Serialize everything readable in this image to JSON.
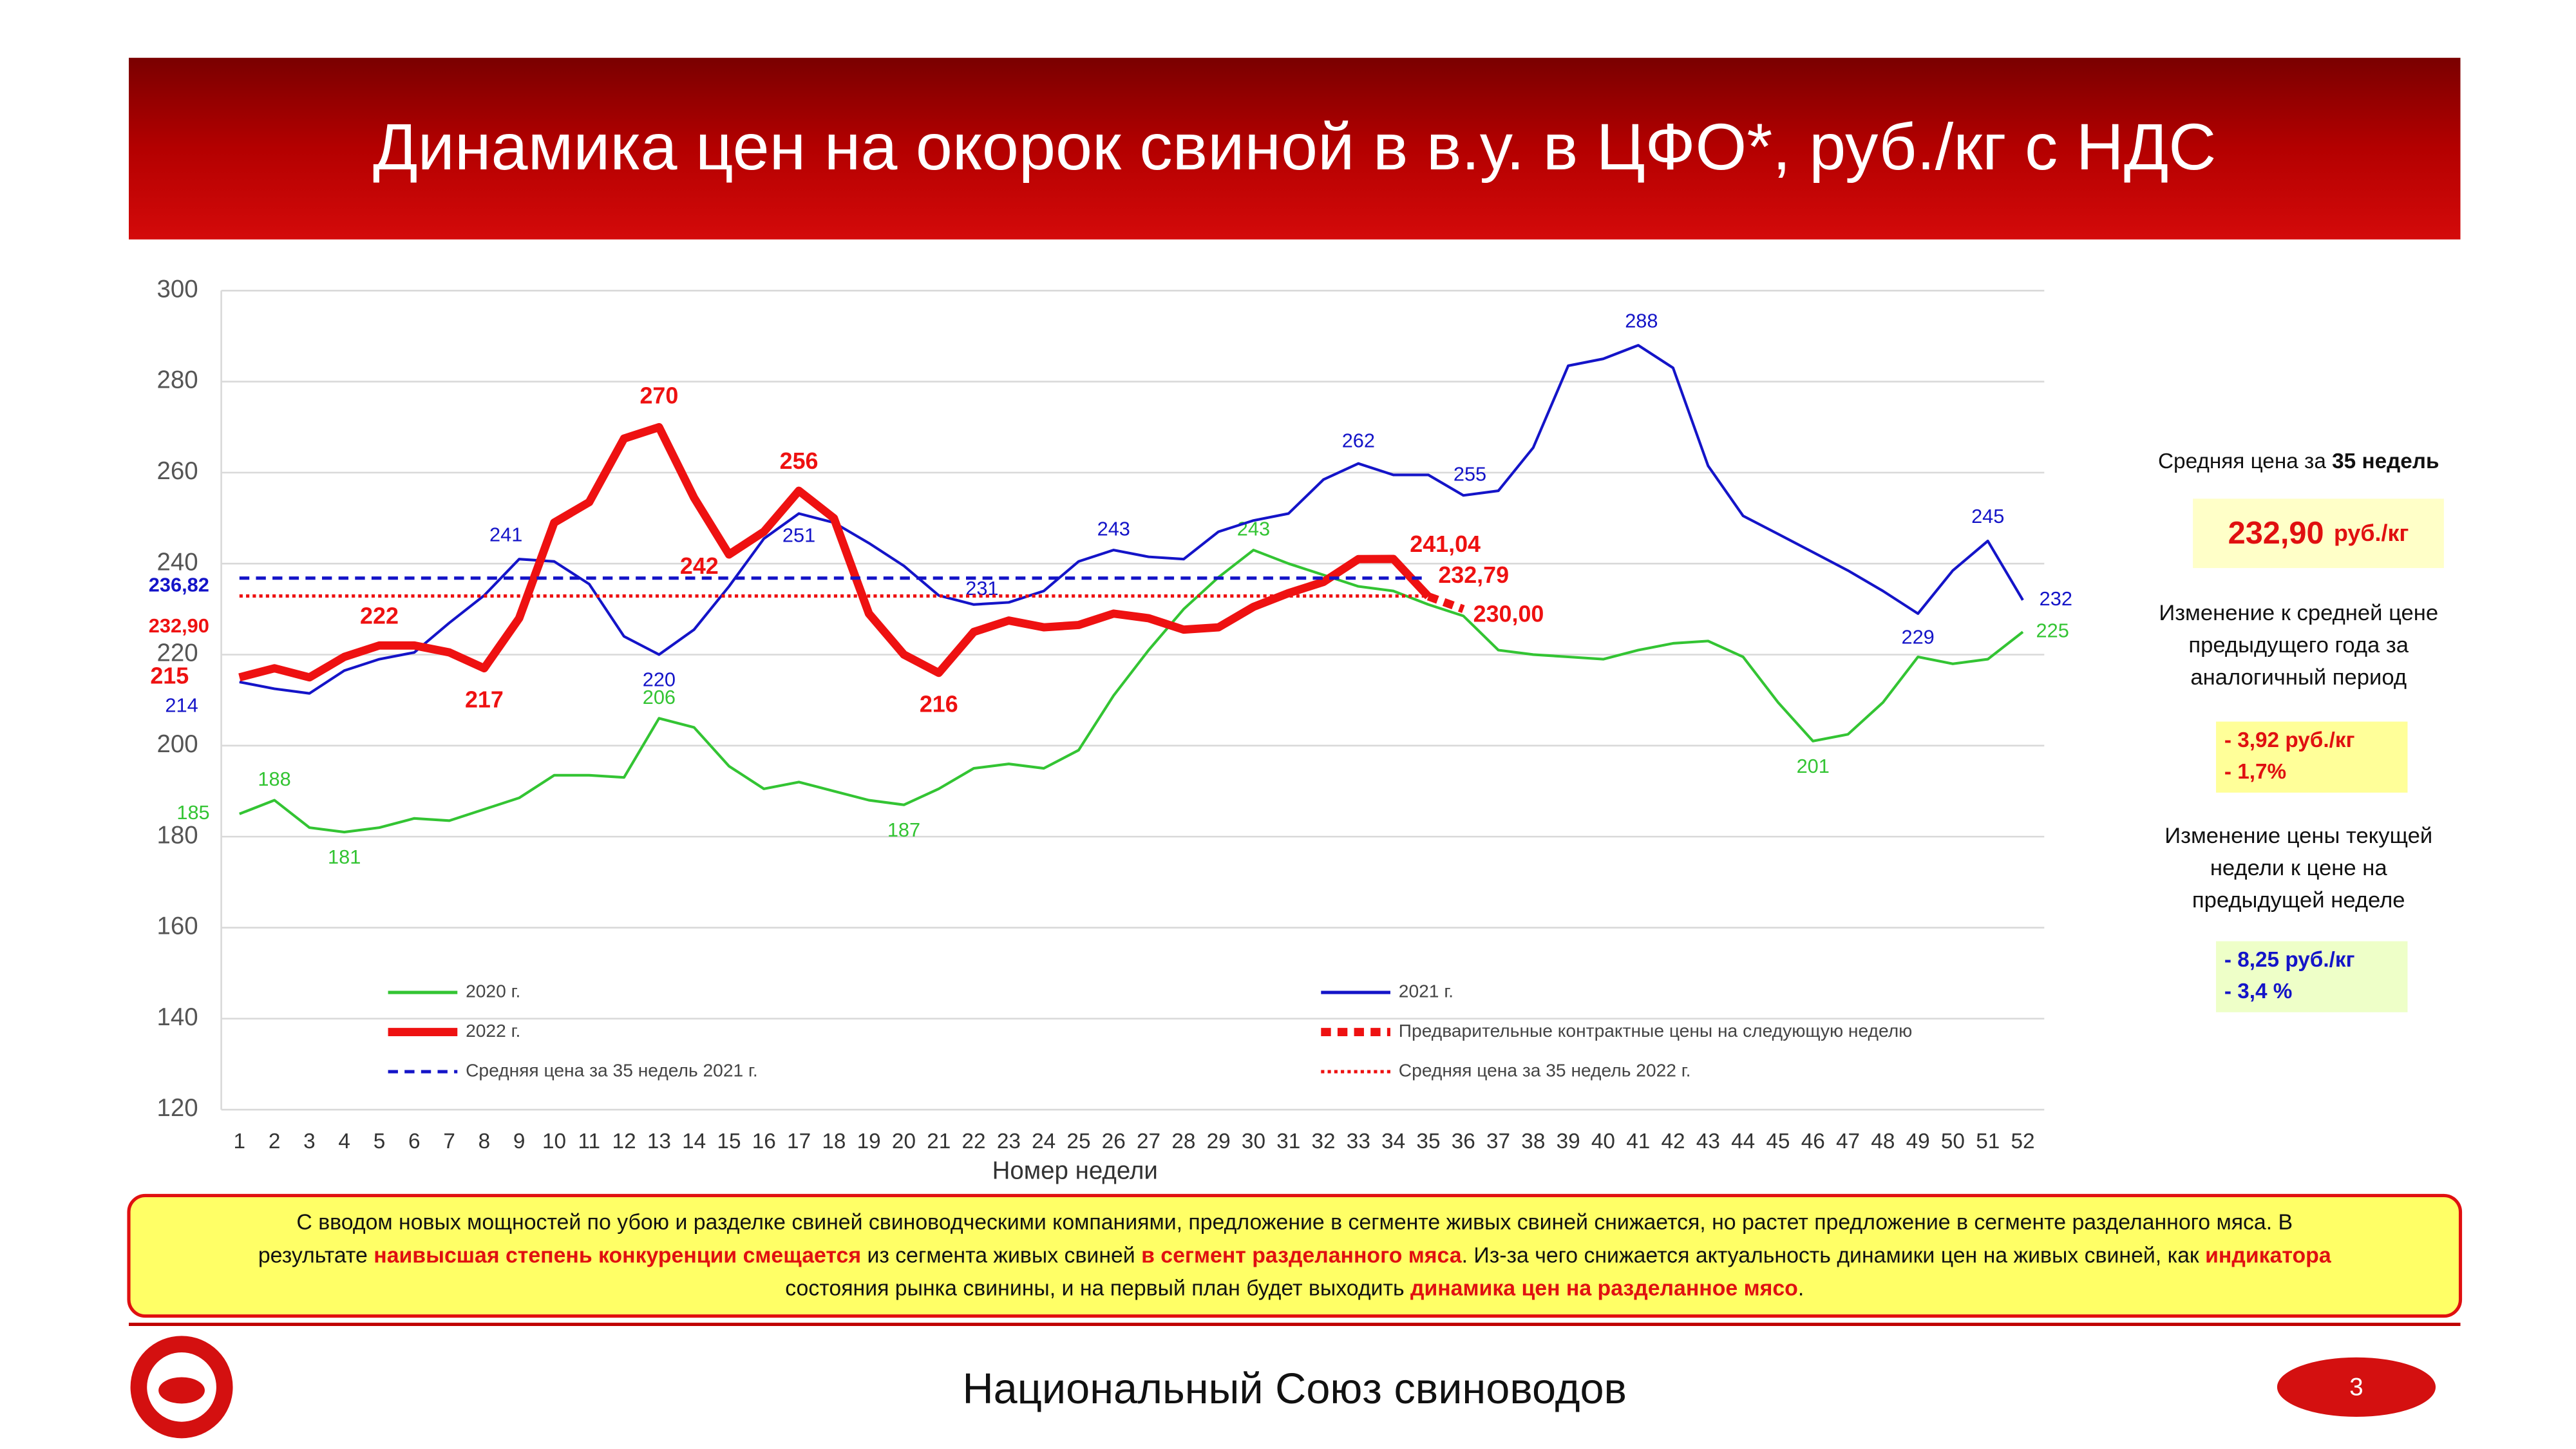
{
  "header": {
    "title": "Динамика цен на окорок свиной в в.у. в ЦФО*, руб./кг с НДС"
  },
  "chart_data": {
    "type": "line",
    "x_label": "Номер недели",
    "categories": [
      1,
      2,
      3,
      4,
      5,
      6,
      7,
      8,
      9,
      10,
      11,
      12,
      13,
      14,
      15,
      16,
      17,
      18,
      19,
      20,
      21,
      22,
      23,
      24,
      25,
      26,
      27,
      28,
      29,
      30,
      31,
      32,
      33,
      34,
      35,
      36,
      37,
      38,
      39,
      40,
      41,
      42,
      43,
      44,
      45,
      46,
      47,
      48,
      49,
      50,
      51,
      52
    ],
    "ylim": [
      120,
      300
    ],
    "yticks": [
      120,
      140,
      160,
      180,
      200,
      220,
      240,
      260,
      280,
      300
    ],
    "grid": true,
    "legend": "inside-bottom",
    "series": [
      {
        "name": "2020 г.",
        "color": "#33c433",
        "line_style": "solid",
        "thick": false,
        "values": [
          185,
          188,
          182,
          181,
          182,
          184,
          183.5,
          186,
          188.5,
          193.5,
          193.5,
          193,
          206,
          204,
          195.5,
          190.5,
          192,
          190,
          188,
          187,
          190.5,
          195,
          196,
          195,
          199,
          211,
          221,
          230,
          237,
          243,
          240,
          237.5,
          235,
          234,
          231,
          228.5,
          221,
          220,
          219.5,
          219,
          221,
          222.5,
          223,
          219.5,
          209.5,
          201,
          202.5,
          209.5,
          219.5,
          218,
          219,
          225
        ],
        "value_labels": [
          "185",
          "188",
          null,
          "181",
          null,
          null,
          null,
          null,
          null,
          null,
          null,
          null,
          "206",
          null,
          null,
          null,
          null,
          null,
          null,
          "187",
          null,
          null,
          null,
          null,
          null,
          null,
          null,
          null,
          null,
          "243",
          null,
          null,
          null,
          null,
          null,
          null,
          null,
          null,
          null,
          null,
          null,
          null,
          null,
          null,
          null,
          "201",
          null,
          null,
          null,
          null,
          null,
          "225"
        ]
      },
      {
        "name": "2021 г.",
        "color": "#1414c8",
        "line_style": "solid",
        "thick": false,
        "values": [
          214,
          212.5,
          211.5,
          216.5,
          219,
          220.5,
          227,
          233,
          241,
          240.5,
          235.5,
          224,
          220,
          225.5,
          235,
          245.5,
          251,
          249,
          244.5,
          239.5,
          233,
          231,
          231.5,
          234,
          240.5,
          243,
          241.5,
          241,
          247,
          249.5,
          251,
          258.5,
          262,
          259.5,
          259.5,
          255,
          256,
          265.5,
          283.5,
          285,
          288,
          283,
          261.5,
          250.5,
          246.5,
          242.5,
          238.5,
          234,
          229,
          238.5,
          245,
          232
        ],
        "value_labels": [
          "214",
          null,
          null,
          null,
          null,
          null,
          null,
          null,
          "241",
          null,
          null,
          null,
          "220",
          null,
          null,
          null,
          "251",
          null,
          null,
          null,
          null,
          "231",
          null,
          null,
          null,
          "243",
          null,
          null,
          null,
          null,
          null,
          null,
          "262",
          null,
          null,
          "255",
          null,
          null,
          null,
          null,
          "288",
          null,
          null,
          null,
          null,
          null,
          null,
          null,
          "229",
          null,
          "245",
          "232"
        ]
      },
      {
        "name": "2022 г.",
        "color": "#ee1111",
        "line_style": "solid",
        "thick": true,
        "values": [
          215,
          217,
          215,
          219.5,
          222,
          222,
          220.5,
          217,
          228,
          249,
          253.5,
          267.5,
          270,
          254.5,
          242,
          247,
          256,
          250,
          229,
          220,
          216,
          225,
          227.5,
          226,
          226.5,
          229,
          228,
          225.5,
          226,
          230.5,
          233.5,
          236,
          241,
          241.04,
          232.79,
          null,
          null,
          null,
          null,
          null,
          null,
          null,
          null,
          null,
          null,
          null,
          null,
          null,
          null,
          null,
          null,
          null
        ],
        "value_labels": [
          "215",
          null,
          null,
          null,
          "222",
          null,
          null,
          "217",
          null,
          null,
          null,
          null,
          "270",
          null,
          "242",
          null,
          "256",
          null,
          null,
          null,
          "216",
          null,
          null,
          null,
          null,
          null,
          null,
          null,
          null,
          null,
          null,
          null,
          null,
          "241,04",
          null,
          null,
          null,
          null,
          null,
          null,
          null,
          null,
          null,
          null,
          null,
          null,
          null,
          null,
          null,
          null,
          null,
          null
        ]
      },
      {
        "name": "Предварительные контрактные цены на следующую неделю",
        "color": "#ee1111",
        "line_style": "dashed",
        "thick": true,
        "values": [
          null,
          null,
          null,
          null,
          null,
          null,
          null,
          null,
          null,
          null,
          null,
          null,
          null,
          null,
          null,
          null,
          null,
          null,
          null,
          null,
          null,
          null,
          null,
          null,
          null,
          null,
          null,
          null,
          null,
          null,
          null,
          null,
          null,
          null,
          232.79,
          230,
          null,
          null,
          null,
          null,
          null,
          null,
          null,
          null,
          null,
          null,
          null,
          null,
          null,
          null,
          null,
          null
        ],
        "value_labels": [
          null,
          null,
          null,
          null,
          null,
          null,
          null,
          null,
          null,
          null,
          null,
          null,
          null,
          null,
          null,
          null,
          null,
          null,
          null,
          null,
          null,
          null,
          null,
          null,
          null,
          null,
          null,
          null,
          null,
          null,
          null,
          null,
          null,
          null,
          "232,79",
          "230,00",
          null,
          null,
          null,
          null,
          null,
          null,
          null,
          null,
          null,
          null,
          null,
          null,
          null,
          null,
          null,
          null
        ]
      },
      {
        "name": "Средняя цена за 35 недель 2021 г.",
        "color": "#1414c8",
        "line_style": "dashed",
        "thick": false,
        "values": [
          236.82,
          236.82,
          236.82,
          236.82,
          236.82,
          236.82,
          236.82,
          236.82,
          236.82,
          236.82,
          236.82,
          236.82,
          236.82,
          236.82,
          236.82,
          236.82,
          236.82,
          236.82,
          236.82,
          236.82,
          236.82,
          236.82,
          236.82,
          236.82,
          236.82,
          236.82,
          236.82,
          236.82,
          236.82,
          236.82,
          236.82,
          236.82,
          236.82,
          236.82,
          236.82,
          null,
          null,
          null,
          null,
          null,
          null,
          null,
          null,
          null,
          null,
          null,
          null,
          null,
          null,
          null,
          null,
          null
        ],
        "value_labels": [
          "236,82",
          null,
          null,
          null,
          null,
          null,
          null,
          null,
          null,
          null,
          null,
          null,
          null,
          null,
          null,
          null,
          null,
          null,
          null,
          null,
          null,
          null,
          null,
          null,
          null,
          null,
          null,
          null,
          null,
          null,
          null,
          null,
          null,
          null,
          null,
          null,
          null,
          null,
          null,
          null,
          null,
          null,
          null,
          null,
          null,
          null,
          null,
          null,
          null,
          null,
          null,
          null
        ]
      },
      {
        "name": "Средняя цена за 35 недель 2022 г.",
        "color": "#ee1111",
        "line_style": "dotted",
        "thick": false,
        "values": [
          232.9,
          232.9,
          232.9,
          232.9,
          232.9,
          232.9,
          232.9,
          232.9,
          232.9,
          232.9,
          232.9,
          232.9,
          232.9,
          232.9,
          232.9,
          232.9,
          232.9,
          232.9,
          232.9,
          232.9,
          232.9,
          232.9,
          232.9,
          232.9,
          232.9,
          232.9,
          232.9,
          232.9,
          232.9,
          232.9,
          232.9,
          232.9,
          232.9,
          232.9,
          232.9,
          null,
          null,
          null,
          null,
          null,
          null,
          null,
          null,
          null,
          null,
          null,
          null,
          null,
          null,
          null,
          null,
          null
        ],
        "value_labels": [
          "232,90",
          null,
          null,
          null,
          null,
          null,
          null,
          null,
          null,
          null,
          null,
          null,
          null,
          null,
          null,
          null,
          null,
          null,
          null,
          null,
          null,
          null,
          null,
          null,
          null,
          null,
          null,
          null,
          null,
          null,
          null,
          null,
          null,
          null,
          null,
          null,
          null,
          null,
          null,
          null,
          null,
          null,
          null,
          null,
          null,
          null,
          null,
          null,
          null,
          null,
          null,
          null
        ]
      }
    ]
  },
  "side_panel": {
    "avg_caption": [
      {
        "text": "Средняя цена  за "
      },
      {
        "text": "35 недель",
        "bold": true
      }
    ],
    "avg_value": "232,90",
    "avg_unit": "руб./кг",
    "year_caption": [
      "Изменение к средней цене",
      "предыдущего года за",
      "аналогичный период"
    ],
    "year_change": [
      "- 3,92 руб./кг",
      "- 1,7%"
    ],
    "week_caption": [
      "Изменение цены текущей",
      "недели к цене на",
      "предыдущей неделе"
    ],
    "week_change": [
      "- 8,25 руб./кг",
      "- 3,4 %"
    ]
  },
  "note": {
    "lines": [
      [
        {
          "text": "С вводом новых мощностей по убою и разделке свиней свиноводческими компаниями, предложение в сегменте живых свиней снижается, но растет предложение в сегменте разделанного мяса.  В"
        }
      ],
      [
        {
          "text": "результате "
        },
        {
          "text": "наивысшая степень конкуренции смещается",
          "emphasis": true
        },
        {
          "text": " из сегмента живых свиней "
        },
        {
          "text": "в сегмент разделанного мяса",
          "emphasis": true
        },
        {
          "text": ". Из-за чего снижается актуальность динамики цен на живых свиней, как "
        },
        {
          "text": "индикатора",
          "emphasis": true
        }
      ],
      [
        {
          "text": "состояния рынка свинины, и на первый план будет выходить "
        },
        {
          "text": "динамика цен на разделанное мясо",
          "emphasis": true
        },
        {
          "text": "."
        }
      ]
    ]
  },
  "footer": {
    "organization": "Национальный Союз свиноводов",
    "page": "3"
  }
}
